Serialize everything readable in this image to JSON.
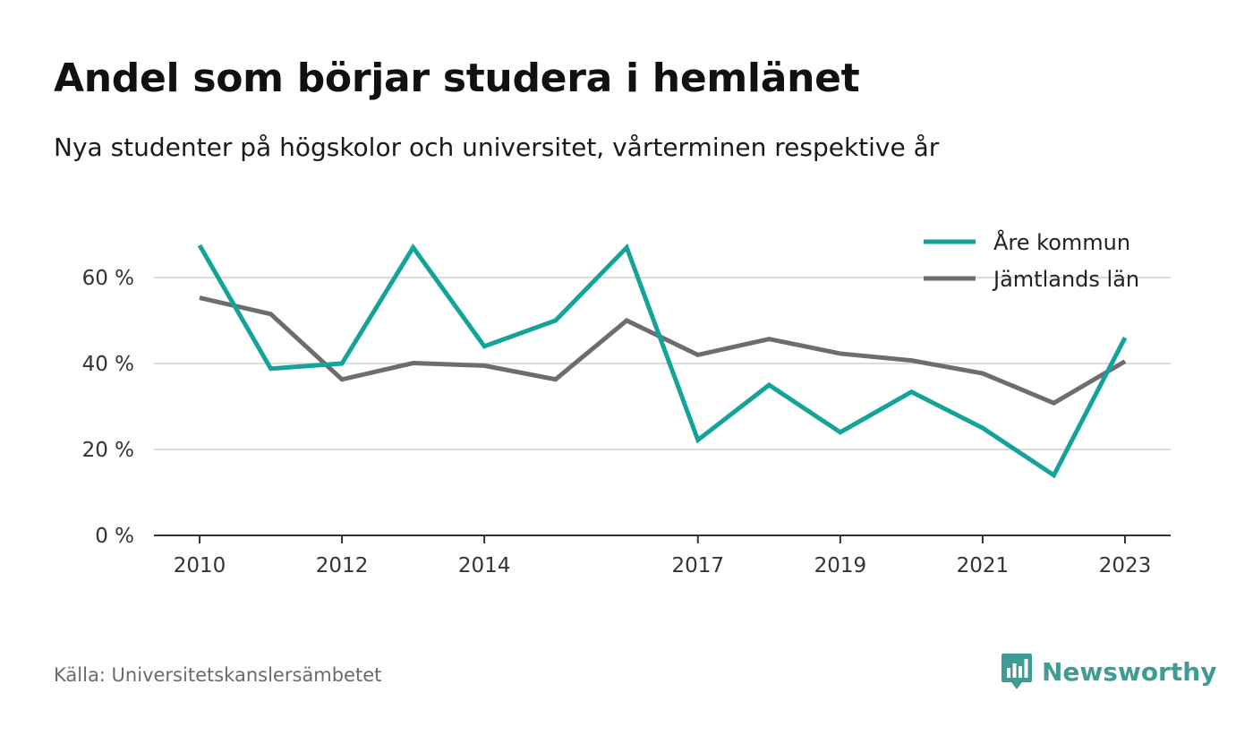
{
  "header": {
    "title": "Andel som börjar studera i hemlänet",
    "subtitle": "Nya studenter på högskolor och universitet, vårterminen respektive år"
  },
  "footer": {
    "source": "Källa: Universitetskanslersämbetet",
    "brand": "Newsworthy",
    "brand_icon": "newsworthy-logo-icon",
    "brand_color": "#3f9c94"
  },
  "chart_data": {
    "type": "line",
    "title": "Andel som börjar studera i hemlänet",
    "subtitle": "Nya studenter på högskolor och universitet, vårterminen respektive år",
    "x": [
      2010,
      2011,
      2012,
      2013,
      2014,
      2015,
      2016,
      2017,
      2018,
      2019,
      2020,
      2021,
      2022,
      2023
    ],
    "x_tick_labels": [
      "2010",
      "2012",
      "2014",
      "2017",
      "2019",
      "2021",
      "2023"
    ],
    "x_ticks": [
      2010,
      2012,
      2014,
      2017,
      2019,
      2021,
      2023
    ],
    "y_ticks": [
      0,
      20,
      40,
      60
    ],
    "y_tick_labels": [
      "0 %",
      "20 %",
      "40 %",
      "60 %"
    ],
    "ylim": [
      0,
      70
    ],
    "grid": true,
    "legend_position": "top-right",
    "series": [
      {
        "name": "Åre kommun",
        "color": "#14a399",
        "values": [
          67.5,
          38.8,
          40.0,
          67.0,
          44.0,
          50.0,
          67.0,
          22.2,
          35.0,
          24.0,
          33.4,
          25.0,
          14.0,
          46.0
        ]
      },
      {
        "name": "Jämtlands län",
        "color": "#6e6c72",
        "values": [
          55.3,
          51.5,
          36.3,
          40.1,
          39.5,
          36.3,
          50.0,
          42.0,
          45.7,
          42.3,
          40.7,
          37.7,
          30.8,
          40.5
        ]
      }
    ]
  }
}
